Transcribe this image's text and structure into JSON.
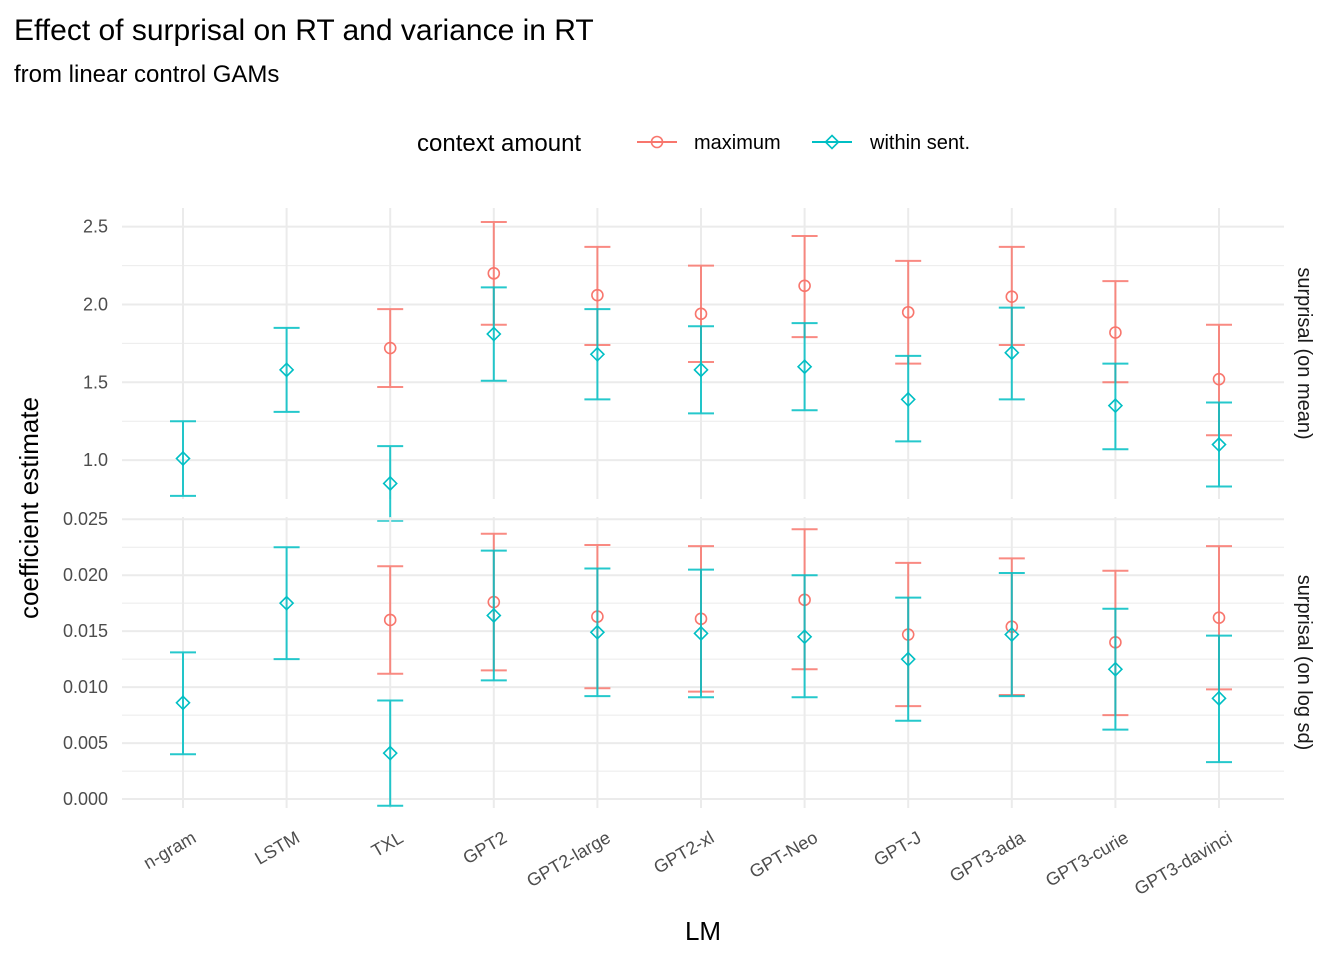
{
  "chart_data": {
    "type": "scatter",
    "title": "Effect of surprisal on RT and variance in RT",
    "subtitle": "from linear control GAMs",
    "xlabel": "LM",
    "ylabel": "coefficient estimate",
    "categories": [
      "n-gram",
      "LSTM",
      "TXL",
      "GPT2",
      "GPT2-large",
      "GPT2-xl",
      "GPT-Neo",
      "GPT-J",
      "GPT3-ada",
      "GPT3-curie",
      "GPT3-davinci"
    ],
    "legend": {
      "title": "context amount",
      "placement": "top",
      "entries": [
        {
          "name": "maximum",
          "color": "#F8766D",
          "shape": "circle"
        },
        {
          "name": "within sent.",
          "color": "#00BFC4",
          "shape": "diamond"
        }
      ]
    },
    "grid": true,
    "panels": [
      {
        "strip": "surprisal (on mean)",
        "ylim": [
          0.75,
          2.62
        ],
        "yticks": [
          1.0,
          1.5,
          2.0,
          2.5
        ],
        "tick_labels": [
          "1.0",
          "1.5",
          "2.0",
          "2.5"
        ],
        "series": [
          {
            "name": "maximum",
            "color": "#F8766D",
            "points": [
              {
                "x": "TXL",
                "y": 1.72,
                "lo": 1.47,
                "hi": 1.97
              },
              {
                "x": "GPT2",
                "y": 2.2,
                "lo": 1.87,
                "hi": 2.53
              },
              {
                "x": "GPT2-large",
                "y": 2.06,
                "lo": 1.74,
                "hi": 2.37
              },
              {
                "x": "GPT2-xl",
                "y": 1.94,
                "lo": 1.63,
                "hi": 2.25
              },
              {
                "x": "GPT-Neo",
                "y": 2.12,
                "lo": 1.79,
                "hi": 2.44
              },
              {
                "x": "GPT-J",
                "y": 1.95,
                "lo": 1.62,
                "hi": 2.28
              },
              {
                "x": "GPT3-ada",
                "y": 2.05,
                "lo": 1.74,
                "hi": 2.37
              },
              {
                "x": "GPT3-curie",
                "y": 1.82,
                "lo": 1.5,
                "hi": 2.15
              },
              {
                "x": "GPT3-davinci",
                "y": 1.52,
                "lo": 1.16,
                "hi": 1.87
              }
            ]
          },
          {
            "name": "within sent.",
            "color": "#00BFC4",
            "points": [
              {
                "x": "n-gram",
                "y": 1.01,
                "lo": 0.77,
                "hi": 1.25
              },
              {
                "x": "LSTM",
                "y": 1.58,
                "lo": 1.31,
                "hi": 1.85
              },
              {
                "x": "TXL",
                "y": 0.85,
                "lo": 0.61,
                "hi": 1.09
              },
              {
                "x": "GPT2",
                "y": 1.81,
                "lo": 1.51,
                "hi": 2.11
              },
              {
                "x": "GPT2-large",
                "y": 1.68,
                "lo": 1.39,
                "hi": 1.97
              },
              {
                "x": "GPT2-xl",
                "y": 1.58,
                "lo": 1.3,
                "hi": 1.86
              },
              {
                "x": "GPT-Neo",
                "y": 1.6,
                "lo": 1.32,
                "hi": 1.88
              },
              {
                "x": "GPT-J",
                "y": 1.39,
                "lo": 1.12,
                "hi": 1.67
              },
              {
                "x": "GPT3-ada",
                "y": 1.69,
                "lo": 1.39,
                "hi": 1.98
              },
              {
                "x": "GPT3-curie",
                "y": 1.35,
                "lo": 1.07,
                "hi": 1.62
              },
              {
                "x": "GPT3-davinci",
                "y": 1.1,
                "lo": 0.83,
                "hi": 1.37
              }
            ]
          }
        ]
      },
      {
        "strip": "surprisal (on log sd)",
        "ylim": [
          -0.0008,
          0.0252
        ],
        "yticks": [
          0.0,
          0.005,
          0.01,
          0.015,
          0.02,
          0.025
        ],
        "tick_labels": [
          "0.000",
          "0.005",
          "0.010",
          "0.015",
          "0.020",
          "0.025"
        ],
        "series": [
          {
            "name": "maximum",
            "color": "#F8766D",
            "points": [
              {
                "x": "TXL",
                "y": 0.016,
                "lo": 0.0112,
                "hi": 0.0208
              },
              {
                "x": "GPT2",
                "y": 0.0176,
                "lo": 0.0115,
                "hi": 0.0237
              },
              {
                "x": "GPT2-large",
                "y": 0.0163,
                "lo": 0.0099,
                "hi": 0.0227
              },
              {
                "x": "GPT2-xl",
                "y": 0.0161,
                "lo": 0.0096,
                "hi": 0.0226
              },
              {
                "x": "GPT-Neo",
                "y": 0.0178,
                "lo": 0.0116,
                "hi": 0.0241
              },
              {
                "x": "GPT-J",
                "y": 0.0147,
                "lo": 0.0083,
                "hi": 0.0211
              },
              {
                "x": "GPT3-ada",
                "y": 0.0154,
                "lo": 0.0093,
                "hi": 0.0215
              },
              {
                "x": "GPT3-curie",
                "y": 0.014,
                "lo": 0.0075,
                "hi": 0.0204
              },
              {
                "x": "GPT3-davinci",
                "y": 0.0162,
                "lo": 0.0098,
                "hi": 0.0226
              }
            ]
          },
          {
            "name": "within sent.",
            "color": "#00BFC4",
            "points": [
              {
                "x": "n-gram",
                "y": 0.0086,
                "lo": 0.004,
                "hi": 0.0131
              },
              {
                "x": "LSTM",
                "y": 0.0175,
                "lo": 0.0125,
                "hi": 0.0225
              },
              {
                "x": "TXL",
                "y": 0.0041,
                "lo": -0.0006,
                "hi": 0.0088
              },
              {
                "x": "GPT2",
                "y": 0.0164,
                "lo": 0.0106,
                "hi": 0.0222
              },
              {
                "x": "GPT2-large",
                "y": 0.0149,
                "lo": 0.0092,
                "hi": 0.0206
              },
              {
                "x": "GPT2-xl",
                "y": 0.0148,
                "lo": 0.0091,
                "hi": 0.0205
              },
              {
                "x": "GPT-Neo",
                "y": 0.0145,
                "lo": 0.0091,
                "hi": 0.02
              },
              {
                "x": "GPT-J",
                "y": 0.0125,
                "lo": 0.007,
                "hi": 0.018
              },
              {
                "x": "GPT3-ada",
                "y": 0.0147,
                "lo": 0.0092,
                "hi": 0.0202
              },
              {
                "x": "GPT3-curie",
                "y": 0.0116,
                "lo": 0.0062,
                "hi": 0.017
              },
              {
                "x": "GPT3-davinci",
                "y": 0.009,
                "lo": 0.0033,
                "hi": 0.0146
              }
            ]
          }
        ]
      }
    ]
  }
}
